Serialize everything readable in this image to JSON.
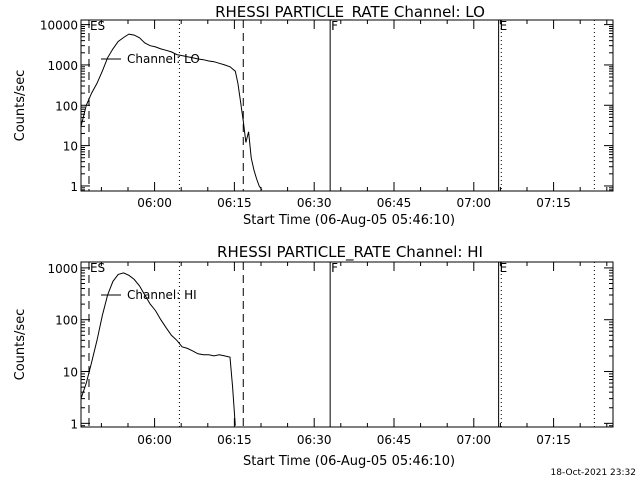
{
  "timestamp": "18-Oct-2021 23:32",
  "chart_data": [
    {
      "type": "line",
      "title": "RHESSI PARTICLE_RATE Channel: LO",
      "xlabel": "Start Time (06-Aug-05 05:46:10)",
      "ylabel": "Counts/sec",
      "yscale": "log",
      "ylim": [
        0.75,
        13000
      ],
      "xlim": [
        "05:46:10",
        "07:26:10"
      ],
      "x_tick_labels": [
        "06:00",
        "06:15",
        "06:30",
        "06:45",
        "07:00",
        "07:15"
      ],
      "y_tick_labels": [
        "1",
        "10",
        "100",
        "1000",
        "10000"
      ],
      "legend": "Channel: LO",
      "markers": [
        {
          "label": "ES",
          "time": "05:47:40",
          "style": "dashed"
        },
        {
          "label": "",
          "time": "06:04:40",
          "style": "dotted"
        },
        {
          "label": "",
          "time": "06:16:40",
          "style": "dashed"
        },
        {
          "label": "F",
          "time": "06:33:00",
          "style": "solid"
        },
        {
          "label": "E",
          "time": "07:04:40",
          "style": "solid"
        },
        {
          "label": "",
          "time": "07:05:10",
          "style": "dotted"
        },
        {
          "label": "",
          "time": "07:22:40",
          "style": "dotted"
        }
      ],
      "series": [
        {
          "x": [
            "05:46:10",
            "05:47:10",
            "05:48:10",
            "05:49:10",
            "05:50:10",
            "05:51:10",
            "05:52:10",
            "05:53:10",
            "05:54:10",
            "05:55:10",
            "05:56:10",
            "05:57:10",
            "05:58:10",
            "05:59:10",
            "06:00:10",
            "06:01:10",
            "06:02:10",
            "06:03:10",
            "06:04:10",
            "06:05:10",
            "06:06:10",
            "06:07:10",
            "06:08:10",
            "06:09:10",
            "06:10:10",
            "06:11:10",
            "06:12:10",
            "06:13:10",
            "06:14:10",
            "06:15:10",
            "06:15:40",
            "06:16:10",
            "06:16:40",
            "06:17:10",
            "06:17:40",
            "06:18:10",
            "06:18:40",
            "06:19:10",
            "06:19:40",
            "06:20:10"
          ],
          "y": [
            30,
            100,
            200,
            350,
            700,
            1500,
            2500,
            3800,
            4800,
            5800,
            5500,
            4700,
            3500,
            3000,
            2800,
            2500,
            2300,
            2100,
            1800,
            1700,
            1600,
            1500,
            1400,
            1350,
            1250,
            1200,
            1100,
            1000,
            900,
            700,
            350,
            120,
            40,
            12,
            22,
            5,
            2.5,
            1.5,
            1,
            0.8
          ]
        }
      ]
    },
    {
      "type": "line",
      "title": "RHESSI PARTICLE_RATE Channel: HI",
      "xlabel": "Start Time (06-Aug-05 05:46:10)",
      "ylabel": "Counts/sec",
      "yscale": "log",
      "ylim": [
        0.85,
        1300
      ],
      "xlim": [
        "05:46:10",
        "07:26:10"
      ],
      "x_tick_labels": [
        "06:00",
        "06:15",
        "06:30",
        "06:45",
        "07:00",
        "07:15"
      ],
      "y_tick_labels": [
        "1",
        "10",
        "100",
        "1000"
      ],
      "legend": "Channel: HI",
      "markers": [
        {
          "label": "ES",
          "time": "05:47:40",
          "style": "dashed"
        },
        {
          "label": "",
          "time": "06:04:40",
          "style": "dotted"
        },
        {
          "label": "",
          "time": "06:16:40",
          "style": "dashed"
        },
        {
          "label": "F",
          "time": "06:33:00",
          "style": "solid"
        },
        {
          "label": "E",
          "time": "07:04:40",
          "style": "solid"
        },
        {
          "label": "",
          "time": "07:05:10",
          "style": "dotted"
        },
        {
          "label": "",
          "time": "07:22:40",
          "style": "dotted"
        }
      ],
      "series": [
        {
          "x": [
            "05:46:10",
            "05:47:10",
            "05:48:10",
            "05:49:10",
            "05:50:10",
            "05:51:10",
            "05:52:10",
            "05:53:10",
            "05:54:10",
            "05:55:10",
            "05:56:10",
            "05:57:10",
            "05:58:10",
            "05:59:10",
            "06:00:10",
            "06:01:10",
            "06:02:10",
            "06:03:10",
            "06:04:10",
            "06:05:10",
            "06:06:10",
            "06:07:10",
            "06:08:10",
            "06:09:10",
            "06:10:10",
            "06:11:10",
            "06:12:10",
            "06:13:10",
            "06:14:10",
            "06:14:40",
            "06:15:10"
          ],
          "y": [
            3,
            6,
            15,
            40,
            120,
            300,
            550,
            750,
            800,
            720,
            600,
            450,
            300,
            200,
            150,
            100,
            70,
            50,
            40,
            30,
            28,
            25,
            22,
            21,
            21,
            20,
            21,
            20,
            19,
            5,
            0.9
          ]
        }
      ]
    }
  ]
}
